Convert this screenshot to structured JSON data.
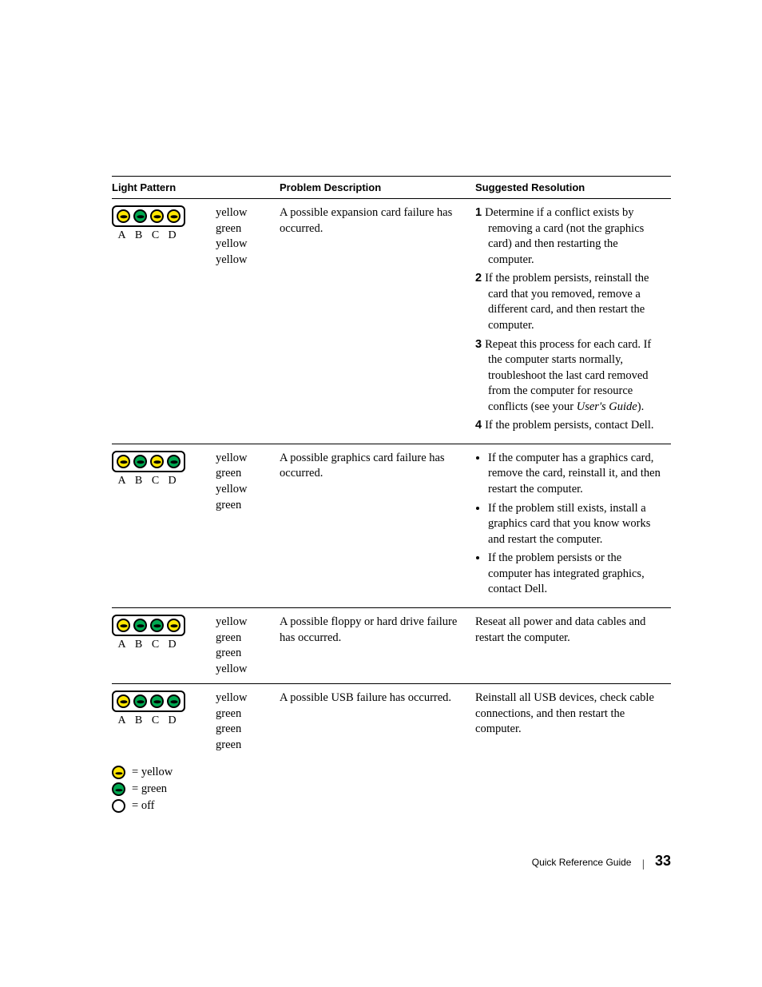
{
  "colors": {
    "yellow": "#ffe600",
    "green": "#00a850",
    "off": "#ffffff",
    "border": "#000000",
    "text": "#000000"
  },
  "led_labels": {
    "a": "A",
    "b": "B",
    "c": "C",
    "d": "D"
  },
  "color_names": {
    "yellow": "yellow",
    "green": "green",
    "off": "off"
  },
  "headers": {
    "pattern": "Light Pattern",
    "problem": "Problem Description",
    "resolution": "Suggested Resolution"
  },
  "rows": {
    "r1": {
      "pattern": [
        "yellow",
        "green",
        "yellow",
        "yellow"
      ],
      "problem": "A possible expansion card failure has occurred.",
      "steps": {
        "s1": "Determine if a conflict exists by removing a card (not the graphics card) and then restarting the computer.",
        "s2": "If the problem persists, reinstall the card that you removed, remove a different card, and then restart the computer.",
        "s3a": "Repeat this process for each card. If the computer starts normally, troubleshoot the last card removed from the computer for resource conflicts (see your ",
        "s3b": "User's Guide",
        "s3c": ").",
        "s4": "If the problem persists, contact Dell."
      }
    },
    "r2": {
      "pattern": [
        "yellow",
        "green",
        "yellow",
        "green"
      ],
      "problem": "A possible graphics card failure has occurred.",
      "bullets": {
        "b1": "If the computer has a graphics card, remove the card, reinstall it, and then restart the computer.",
        "b2": "If the problem still exists, install a graphics card that you know works and restart the computer.",
        "b3": "If the problem persists or the computer has integrated graphics, contact Dell."
      }
    },
    "r3": {
      "pattern": [
        "yellow",
        "green",
        "green",
        "yellow"
      ],
      "problem": "A possible floppy or hard drive failure has occurred.",
      "resolution": "Reseat all power and data cables and restart the computer."
    },
    "r4": {
      "pattern": [
        "yellow",
        "green",
        "green",
        "green"
      ],
      "problem": "A possible USB failure has occurred.",
      "resolution": "Reinstall all USB devices, check cable connections, and then restart the computer."
    }
  },
  "legend": {
    "eq": "=",
    "yellow": "yellow",
    "green": "green",
    "off": "off"
  },
  "footer": {
    "title": "Quick Reference Guide",
    "page": "33"
  }
}
